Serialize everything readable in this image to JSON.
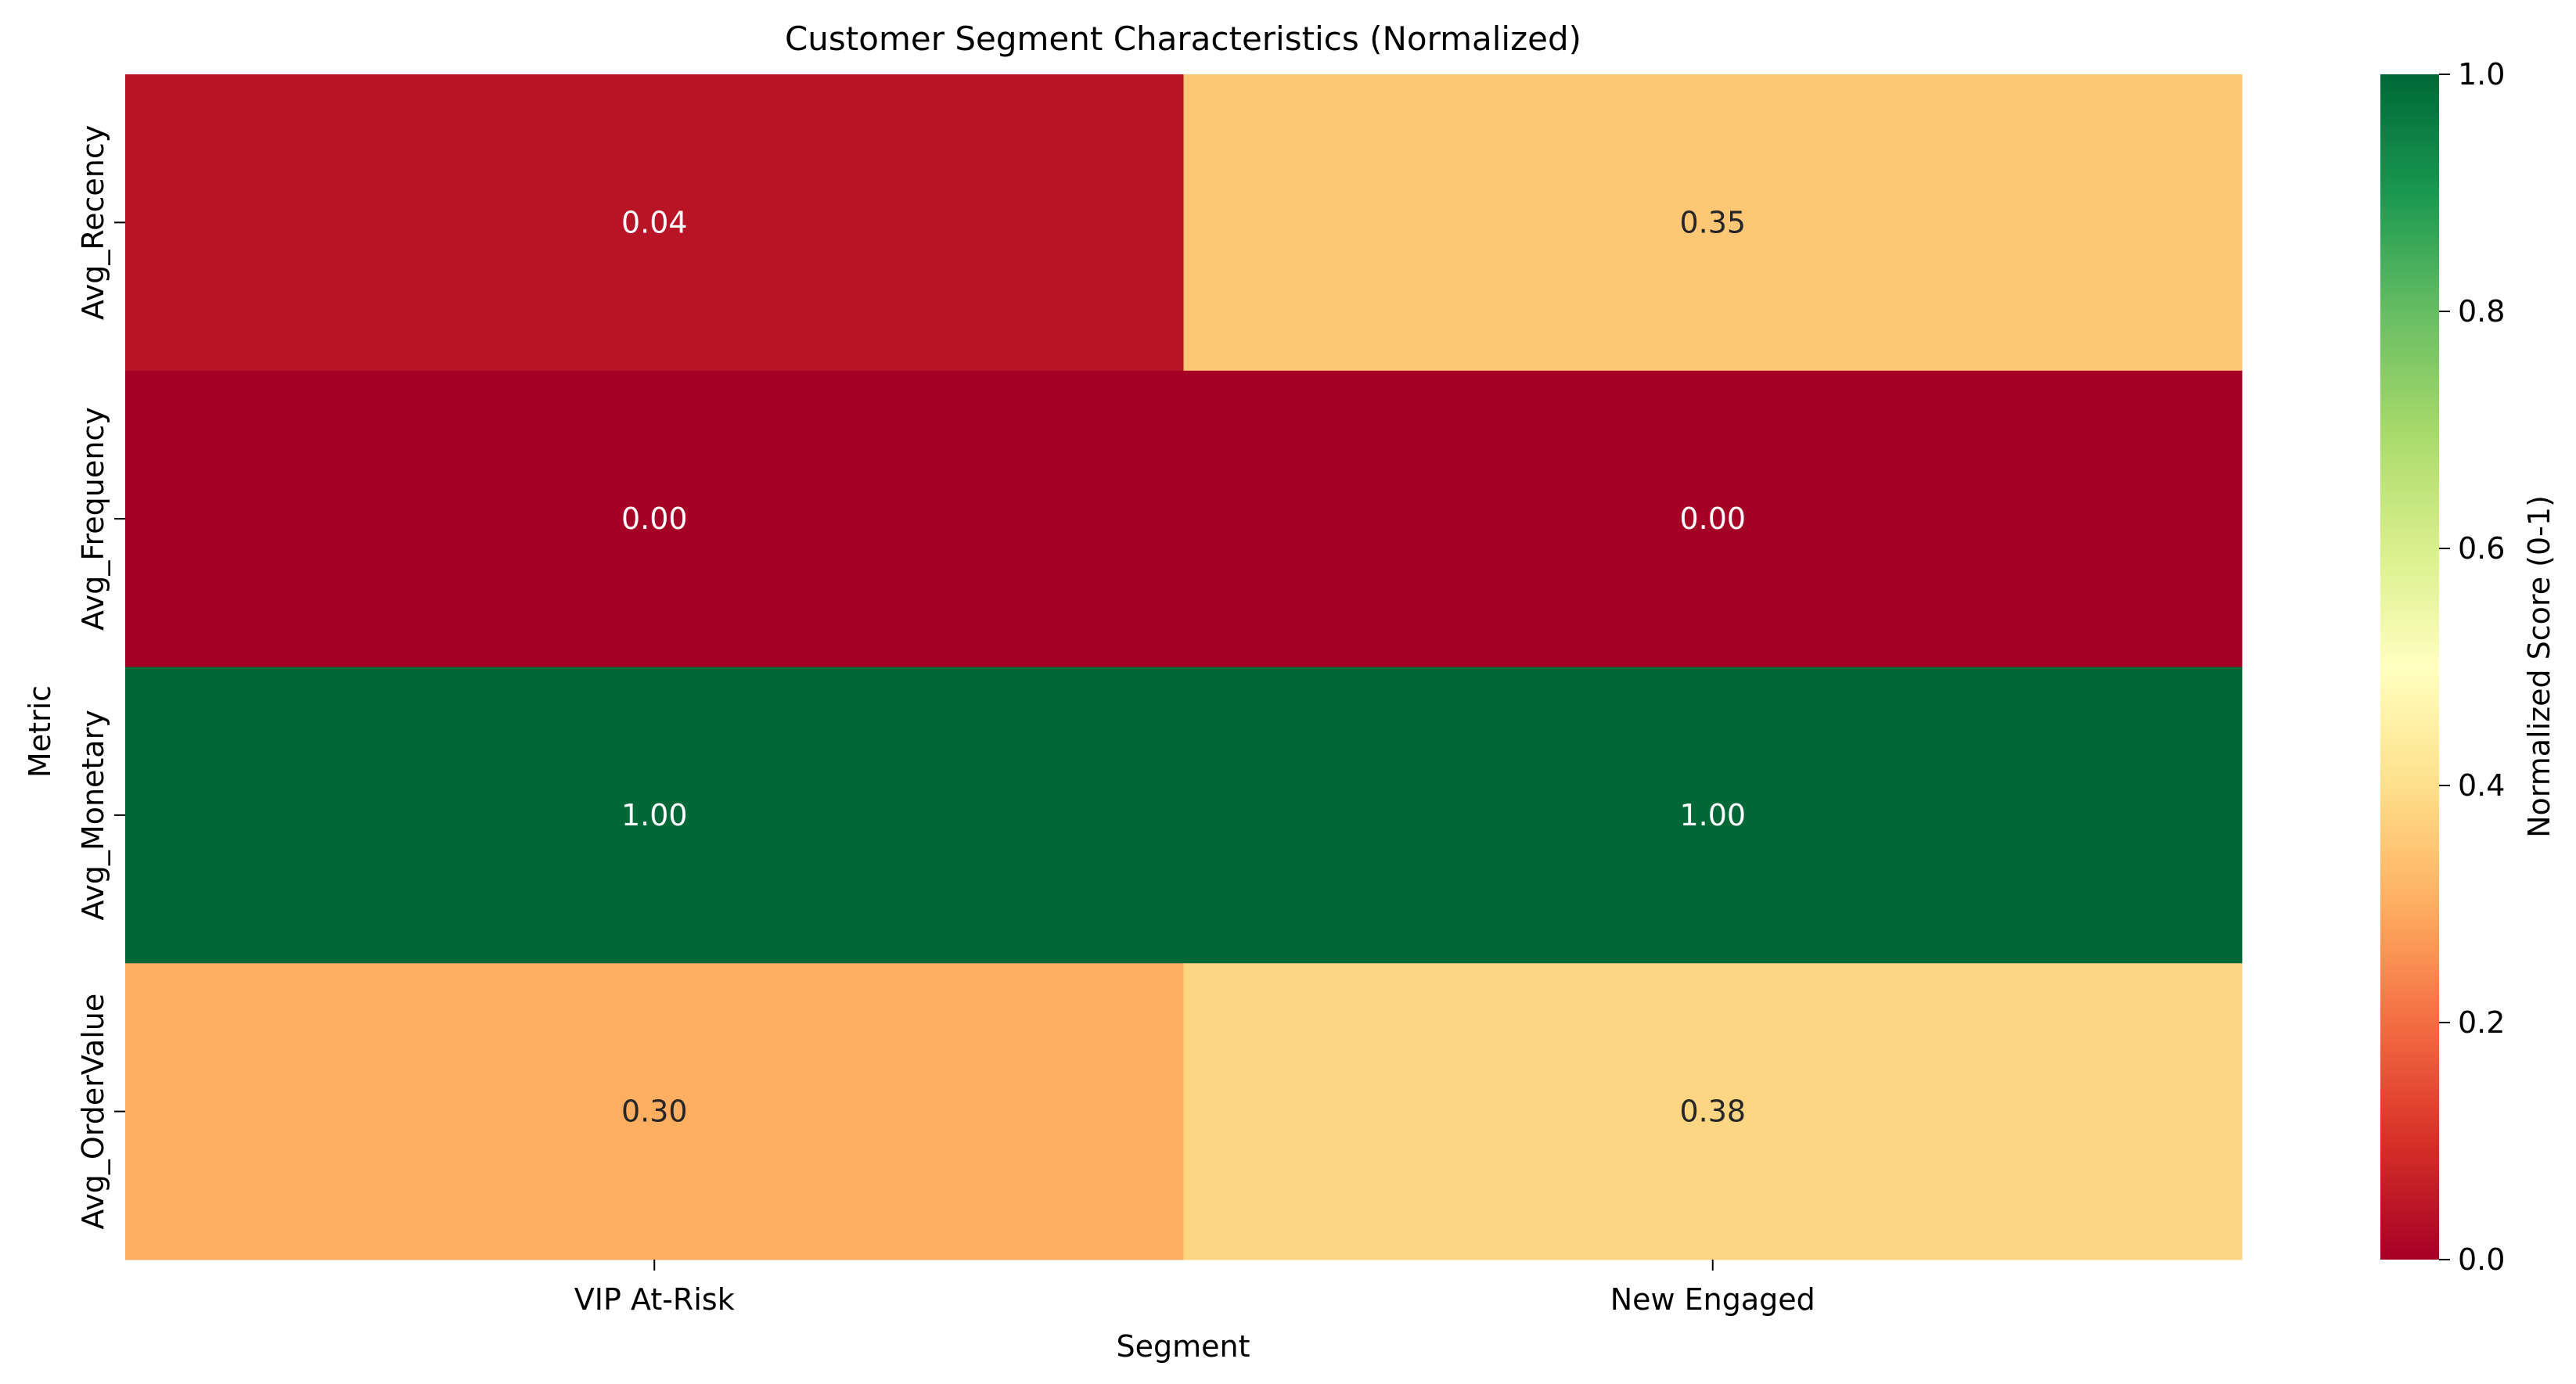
{
  "chart_data": {
    "type": "heatmap",
    "title": "Customer Segment Characteristics (Normalized)",
    "xlabel": "Segment",
    "ylabel": "Metric",
    "x_categories": [
      "VIP At-Risk",
      "New Engaged"
    ],
    "y_categories": [
      "Avg_Recency",
      "Avg_Frequency",
      "Avg_Monetary",
      "Avg_OrderValue"
    ],
    "values": [
      [
        0.04,
        0.35
      ],
      [
        0.0,
        0.0
      ],
      [
        1.0,
        1.0
      ],
      [
        0.3,
        0.38
      ]
    ],
    "value_format_decimals": 2,
    "colormap": "RdYlGn",
    "color_range": [
      0.0,
      1.0
    ],
    "colorbar": {
      "label": "Normalized Score (0-1)",
      "ticks": [
        0.0,
        0.2,
        0.4,
        0.6,
        0.8,
        1.0
      ],
      "tick_labels": [
        "0.0",
        "0.2",
        "0.4",
        "0.6",
        "0.8",
        "1.0"
      ]
    },
    "grid": false,
    "legend": "colorbar-right"
  }
}
